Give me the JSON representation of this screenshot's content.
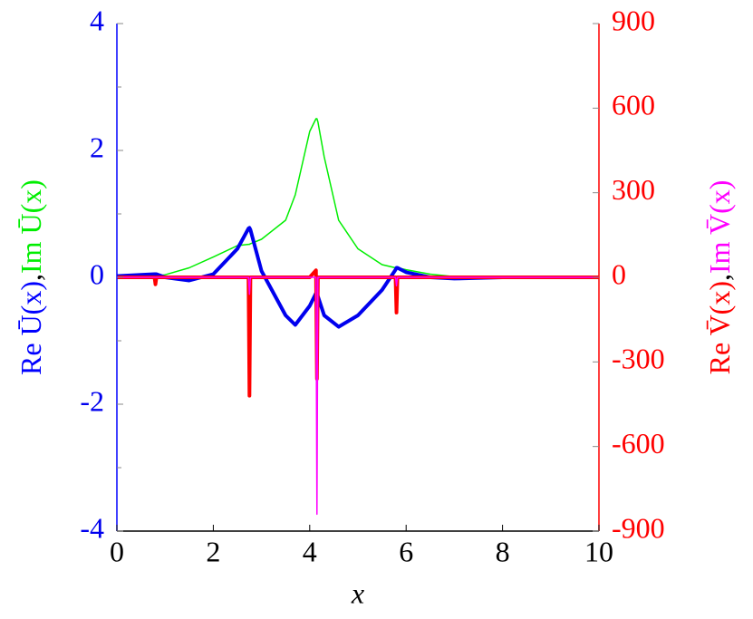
{
  "chart_data": {
    "type": "line",
    "xlabel": "x",
    "ylabel": [
      "Re Ū(x)",
      ",",
      "Im Ū(x)"
    ],
    "ylabel_colors": [
      "#0000ff",
      "#000000",
      "#00ee00"
    ],
    "y2label": [
      "Re V̄(x)",
      ",",
      "Im V̄(x)"
    ],
    "y2label_colors": [
      "#ff0000",
      "#000000",
      "#ff00ff"
    ],
    "xlim": [
      0,
      10
    ],
    "xticks": [
      0,
      2,
      4,
      6,
      8,
      10
    ],
    "ylim": [
      -4,
      4
    ],
    "yticks": [
      -4,
      -2,
      0,
      2,
      4
    ],
    "yminor": [
      -3,
      -1,
      1,
      3
    ],
    "y2lim": [
      -900,
      900
    ],
    "y2ticks": [
      -900,
      -600,
      -300,
      0,
      300,
      600,
      900
    ],
    "x": [
      0,
      0.5,
      0.78,
      0.8,
      0.82,
      1,
      1.5,
      2,
      2.5,
      2.73,
      2.75,
      2.77,
      3,
      3.5,
      3.7,
      4,
      4.13,
      4.15,
      4.17,
      4.3,
      4.6,
      5,
      5.5,
      5.78,
      5.8,
      5.82,
      6,
      6.5,
      7,
      8,
      9,
      10
    ],
    "series": [
      {
        "name": "Im Ū(x)",
        "color": "#00ee00",
        "width": 1.5,
        "values": [
          0,
          0,
          0.02,
          0.02,
          0.02,
          0.04,
          0.15,
          0.32,
          0.5,
          0.52,
          0.52,
          0.53,
          0.6,
          0.9,
          1.3,
          2.3,
          2.5,
          2.5,
          2.45,
          1.9,
          0.9,
          0.45,
          0.2,
          0.15,
          0.15,
          0.15,
          0.12,
          0.05,
          0.01,
          0,
          0,
          0
        ]
      },
      {
        "name": "Re Ū(x)",
        "color": "#0000ee",
        "width": 4,
        "values": [
          0.02,
          0.04,
          0.05,
          0.05,
          0.05,
          0,
          -0.05,
          0.05,
          0.45,
          0.77,
          0.78,
          0.75,
          0.1,
          -0.6,
          -0.75,
          -0.45,
          -0.25,
          -0.25,
          -0.3,
          -0.6,
          -0.78,
          -0.6,
          -0.2,
          0.12,
          0.15,
          0.15,
          0.08,
          0,
          -0.02,
          0,
          0,
          0
        ]
      },
      {
        "name": "Re V̄(x)",
        "color": "#ff0000",
        "width": 4,
        "axis": "y2",
        "values": [
          0,
          0,
          0,
          -25,
          0,
          0,
          0,
          0,
          0,
          0,
          -420,
          0,
          0,
          0,
          0,
          0,
          25,
          -360,
          0,
          0,
          0,
          0,
          0,
          0,
          -125,
          0,
          0,
          0,
          0,
          0,
          0,
          0
        ]
      },
      {
        "name": "Im V̄(x)",
        "color": "#ff00ff",
        "width": 1.5,
        "axis": "y2",
        "values": [
          0,
          0,
          0,
          0,
          0,
          0,
          0,
          0,
          0,
          0,
          -60,
          0,
          0,
          0,
          0,
          0,
          0,
          -840,
          0,
          0,
          0,
          0,
          0,
          0,
          -30,
          0,
          0,
          0,
          0,
          0,
          0,
          0
        ]
      }
    ]
  }
}
